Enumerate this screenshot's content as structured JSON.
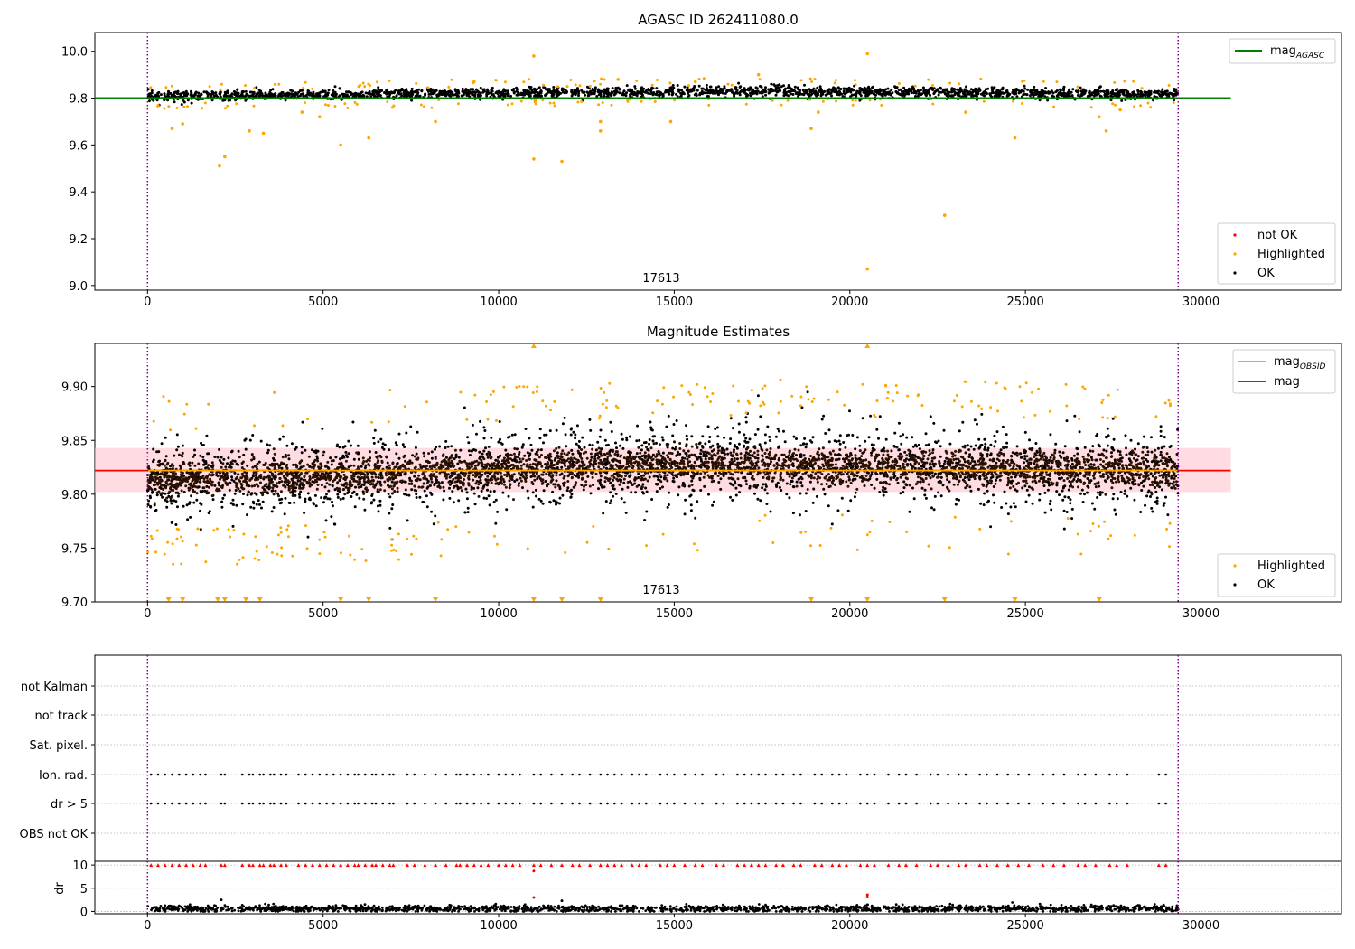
{
  "colors": {
    "ok": "#000000",
    "highlighted": "#ffa500",
    "not_ok": "#ff0000",
    "agasc_line": "#008000",
    "obsid_line": "#ffa500",
    "mag_line": "#ff0000",
    "mag_band": "#ffc0cb",
    "obsid_vline": "#800080",
    "scatter_brown": "#2b1100",
    "grid": "#b0b0b0"
  },
  "chart_data": [
    {
      "type": "scatter",
      "title": "AGASC ID 262411080.0",
      "xlim": [
        -1500,
        34000
      ],
      "ylim": [
        8.98,
        10.08
      ],
      "x_ticks": [
        0,
        5000,
        10000,
        15000,
        20000,
        25000,
        30000
      ],
      "x_tick_labels": [
        "0",
        "5000",
        "10000",
        "15000",
        "20000",
        "25000",
        "30000"
      ],
      "y_ticks": [
        9.0,
        9.2,
        9.4,
        9.6,
        9.8,
        10.0
      ],
      "y_tick_labels": [
        "9.0",
        "9.2",
        "9.4",
        "9.6",
        "9.8",
        "10.0"
      ],
      "obsid_boundaries": [
        0,
        29350
      ],
      "obsid_label": "17613",
      "obsid_label_x": 14700,
      "agasc_mag": 9.8,
      "agasc_line_x": [
        -1500,
        30850
      ],
      "ok_band": {
        "x0": 0,
        "x1": 29350,
        "center_start": 9.808,
        "center_end": 9.815,
        "center_mid": 9.83,
        "spread": 0.02
      },
      "highlighted_points": [
        [
          2050,
          9.51
        ],
        [
          2200,
          9.55
        ],
        [
          2900,
          9.66
        ],
        [
          3300,
          9.65
        ],
        [
          5500,
          9.6
        ],
        [
          6300,
          9.63
        ],
        [
          700,
          9.67
        ],
        [
          1000,
          9.69
        ],
        [
          11000,
          9.54
        ],
        [
          11800,
          9.53
        ],
        [
          12900,
          9.66
        ],
        [
          12900,
          9.7
        ],
        [
          14900,
          9.7
        ],
        [
          18900,
          9.67
        ],
        [
          19100,
          9.74
        ],
        [
          22700,
          9.3
        ],
        [
          20500,
          9.07
        ],
        [
          24700,
          9.63
        ],
        [
          27100,
          9.72
        ],
        [
          27300,
          9.66
        ],
        [
          11000,
          9.98
        ],
        [
          20500,
          9.99
        ],
        [
          17400,
          9.9
        ],
        [
          8200,
          9.7
        ],
        [
          23300,
          9.74
        ],
        [
          27700,
          9.75
        ],
        [
          4400,
          9.74
        ],
        [
          4900,
          9.72
        ],
        [
          15600,
          9.87
        ],
        [
          9300,
          9.87
        ],
        [
          13400,
          9.88
        ]
      ],
      "legends": [
        {
          "position": "top-right",
          "entries": [
            {
              "label": "mag",
              "sub": "AGASC",
              "kind": "line",
              "color": "#008000"
            }
          ]
        },
        {
          "position": "bottom-right",
          "entries": [
            {
              "label": "not OK",
              "kind": "dot",
              "color": "#ff0000"
            },
            {
              "label": "Highlighted",
              "kind": "dot",
              "color": "#ffa500"
            },
            {
              "label": "OK",
              "kind": "dot",
              "color": "#000000"
            }
          ]
        }
      ]
    },
    {
      "type": "scatter",
      "title": "Magnitude Estimates",
      "xlim": [
        -1500,
        34000
      ],
      "ylim": [
        9.7,
        9.94
      ],
      "x_ticks": [
        0,
        5000,
        10000,
        15000,
        20000,
        25000,
        30000
      ],
      "x_tick_labels": [
        "0",
        "5000",
        "10000",
        "15000",
        "20000",
        "25000",
        "30000"
      ],
      "y_ticks": [
        9.7,
        9.75,
        9.8,
        9.85,
        9.9
      ],
      "y_tick_labels": [
        "9.70",
        "9.75",
        "9.80",
        "9.85",
        "9.90"
      ],
      "obsid_boundaries": [
        0,
        29350
      ],
      "obsid_label": "17613",
      "obsid_label_x": 14700,
      "mag": 9.822,
      "mag_band": [
        9.802,
        9.843
      ],
      "mag_line_x": [
        -1500,
        30850
      ],
      "ok_band": {
        "x0": 0,
        "x1": 29350,
        "center_start": 9.812,
        "center_end": 9.822,
        "center_mid": 9.828,
        "spread": 0.018
      },
      "low_clipped_x": [
        600,
        1000,
        2000,
        2200,
        2800,
        3200,
        5500,
        6300,
        8200,
        11000,
        11800,
        12900,
        18900,
        20500,
        22700,
        24700,
        27100
      ],
      "high_clipped_x": [
        11000,
        20500
      ],
      "legends": [
        {
          "position": "top-right",
          "entries": [
            {
              "label": "mag",
              "sub": "OBSID",
              "kind": "line",
              "color": "#ffa500"
            },
            {
              "label": "mag",
              "kind": "line",
              "color": "#ff0000"
            }
          ]
        },
        {
          "position": "bottom-right",
          "entries": [
            {
              "label": "Highlighted",
              "kind": "dot",
              "color": "#ffa500"
            },
            {
              "label": "OK",
              "kind": "dot",
              "color": "#000000"
            }
          ]
        }
      ]
    },
    {
      "type": "scatter",
      "title": "",
      "xlim": [
        -1500,
        34000
      ],
      "categories": [
        "not Kalman",
        "not track",
        "Sat. pixel.",
        "Ion. rad.",
        "dr > 5",
        "OBS not OK"
      ],
      "obsid_boundaries": [
        0,
        29350
      ],
      "flag_rows_with_points": [
        "Ion. rad.",
        "dr > 5"
      ],
      "flag_event_x": [
        100,
        300,
        500,
        700,
        900,
        1100,
        1300,
        1500,
        1650,
        2100,
        2200,
        2700,
        2900,
        3000,
        3200,
        3300,
        3500,
        3600,
        3800,
        3950,
        4300,
        4500,
        4700,
        4900,
        5100,
        5300,
        5500,
        5700,
        5900,
        6000,
        6200,
        6400,
        6500,
        6700,
        6900,
        7000,
        7400,
        7600,
        7900,
        8200,
        8500,
        8800,
        8900,
        9100,
        9300,
        9500,
        9700,
        10000,
        10200,
        10400,
        10600,
        11000,
        11200,
        11500,
        11800,
        12100,
        12300,
        12600,
        12900,
        13100,
        13300,
        13500,
        13800,
        14000,
        14200,
        14600,
        14800,
        15000,
        15300,
        15600,
        15800,
        16200,
        16400,
        16800,
        17000,
        17200,
        17400,
        17600,
        17900,
        18100,
        18400,
        18600,
        19000,
        19200,
        19500,
        19700,
        19900,
        20300,
        20500,
        20700,
        21100,
        21400,
        21600,
        21900,
        22300,
        22500,
        22800,
        23100,
        23300,
        23700,
        23900,
        24200,
        24500,
        24800,
        25100,
        25500,
        25800,
        26100,
        26500,
        26700,
        27000,
        27400,
        27600,
        27900,
        28800,
        29000
      ]
    },
    {
      "type": "scatter",
      "title": "",
      "xlim": [
        -1500,
        34000
      ],
      "ylabel": "dr",
      "ylim": [
        -0.5,
        10.8
      ],
      "y_ticks": [
        0,
        5,
        10
      ],
      "y_tick_labels": [
        "0",
        "5",
        "10"
      ],
      "x_ticks": [
        0,
        5000,
        10000,
        15000,
        20000,
        25000,
        30000
      ],
      "x_tick_labels": [
        "0",
        "5000",
        "10000",
        "15000",
        "20000",
        "25000",
        "30000"
      ],
      "obsid_boundaries": [
        0,
        29350
      ],
      "dr_capped_value": 10,
      "dr_outliers": [
        [
          11000,
          8.7
        ],
        [
          11000,
          3.0
        ],
        [
          20500,
          3.6
        ],
        [
          20500,
          3.1
        ],
        [
          2100,
          2.5
        ],
        [
          11800,
          2.3
        ]
      ],
      "ok_band": {
        "x0": 0,
        "x1": 29350,
        "center": 0.6,
        "spread": 0.35
      }
    }
  ]
}
